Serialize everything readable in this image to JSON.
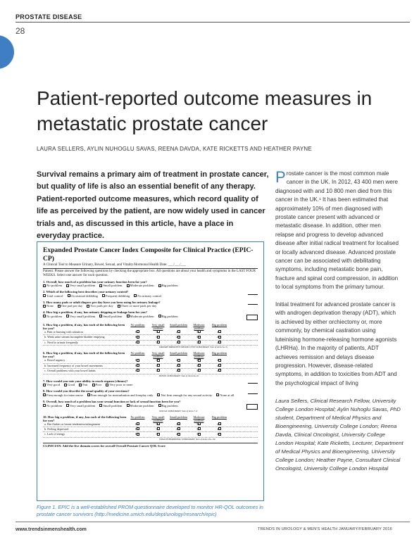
{
  "header": {
    "section_label": "PROSTATE DISEASE",
    "page_number": "28"
  },
  "article": {
    "title": "Patient-reported outcome measures in metastatic prostate cancer",
    "authors": "LAURA SELLERS, AYLIN NUHOGLU SAVAS, REENA DAVDA, KATE RICKETTS AND HEATHER PAYNE",
    "standfirst": "Survival remains a primary aim of treatment in prostate cancer, but quality of life is also an essential benefit of any therapy. Patient-reported outcome measures, which record quality of life as perceived by the patient, are now widely used in cancer trials and, as discussed in this article, have a place in everyday practice.",
    "body_dropcap": "P",
    "body_para1_rest": "rostate cancer is the most common male cancer in the UK. In 2012, 43 400 men were diagnosed with and 10 800 men died from this cancer in the UK.¹ It has been estimated that approximately 10% of men diagnosed with prostate cancer present with advanced or metastatic disease. In addition, other men relapse and progress to develop advanced disease after initial radical treatment for localised or locally advanced disease. Advanced prostate cancer can be associated with debilitating symptoms, including metastatic bone pain, fracture and spinal cord compression, in addition to local symptoms from the primary tumour.",
    "body_para2": "Initial treatment for advanced prostate cancer is with androgen deprivation therapy (ADT), which is achieved by either orchiectomy or, more commonly, by chemical castration using luteinising hormone-releasing hormone agonists (LHRHa). In the majority of patients, ADT achieves remission and delays disease progression. However, disease-related symptoms, in addition to toxicities from ADT and the psychological impact of living",
    "bio": "Laura Sellers, Clinical Research Fellow, University College London Hospital; Aylin Nuhoglu Savas, PhD student, Department of Medical Physics and Bioengineering, University College London; Reena Davda, Clinical Oncologist, University College London Hospital; Kate Ricketts, Lecturer, Department of Medical Physics and Bioengineering, University College London; Heather Payne, Consultant Clinical Oncologist, University College London Hospital"
  },
  "figure": {
    "form_title": "Expanded Prostate Cancer Index Composite for Clinical Practice (EPIC-CP)",
    "form_subtitle": "A Clinical Tool to Measure Urinary, Bowel, Sexual, and Vitality/Hormonal Health     Date: ___/___/___",
    "form_instructions": "Patient: Please answer the following questions by checking the appropriate box. All questions are about your health and symptoms in the LAST FOUR WEEKS. Select one answer for each question.",
    "q1": {
      "text": "1. Overall, how much of a problem has your urinary function been for you?",
      "options": [
        "No problem",
        "Very small problem",
        "Small problem",
        "Moderate problem",
        "Big problem"
      ]
    },
    "q2": {
      "text": "2. Which of the following best describes your urinary control?",
      "options": [
        "Total control",
        "Occasional dribbling",
        "Frequent dribbling",
        "No urinary control"
      ]
    },
    "q3": {
      "text": "3. How many pads or adult diapers per day have you been using for urinary leakage?",
      "options": [
        "None",
        "One pad per day",
        "Two pads per day",
        "Three or more pads per day"
      ]
    },
    "q4": {
      "text": "4. How big a problem, if any, has urinary dripping or leakage been for you?",
      "options": [
        "No problem",
        "Very small problem",
        "Small problem",
        "Moderate problem",
        "Big problem"
      ]
    },
    "grid_columns": [
      "No problem",
      "Very small problem",
      "Small problem",
      "Moderate problem",
      "Big problem"
    ],
    "q5": {
      "text": "5. How big a problem, if any, has each of the following been for you?",
      "rows": [
        "a. Pain or burning with urination",
        "b. Weak urine stream/incomplete bladder emptying",
        "c. Need to urinate frequently"
      ],
      "values": [
        "0",
        "1",
        "2",
        "3",
        "4"
      ],
      "note": "URINARY IRRITATIVE/OBSTRUCTIVE SUBDOMAIN: Sum of items 5a–5c"
    },
    "q6": {
      "text": "6. How big a problem, if any, has each of the following been for you?",
      "rows": [
        "a. Bowel urgency",
        "b. Increased frequency of your bowel movements",
        "c. Overall problems with your bowel habits"
      ],
      "values": [
        "0",
        "1",
        "2",
        "3",
        "4"
      ],
      "note": "BOWEL SUBDOMAIN: Sum of items 6a–6c"
    },
    "q7": {
      "text": "7. How would you rate your ability to reach orgasm (climax)?",
      "options": [
        "Very good",
        "Good",
        "Fair",
        "Poor",
        "Very poor to none"
      ]
    },
    "q8": {
      "text": "8. How would you describe the usual quality of your erections?",
      "options": [
        "Firm enough for intercourse",
        "Firm enough for masturbation and foreplay only",
        "Not firm enough for any sexual activity",
        "None at all"
      ]
    },
    "q9": {
      "text": "9. Overall, how much of a problem has your sexual function or lack of sexual function been for you?",
      "options": [
        "No problem",
        "Very small problem",
        "Small problem",
        "Moderate problem",
        "Big problem"
      ],
      "note": "SEXUAL SUBDOMAIN: Sum of items 7–9"
    },
    "q10": {
      "text": "10. How big a problem, if any, has each of the following been for you?",
      "rows": [
        "a. Hot flashes or breast tenderness/enlargement",
        "b. Feeling depressed",
        "c. Lack of energy"
      ],
      "values": [
        "0",
        "1",
        "2",
        "3",
        "4"
      ],
      "note": "VITALITY/HORMONAL SUBDOMAIN: Sum of items 10a–10c"
    },
    "form_footer": "CLINICIAN: Add the five domain scores for overall Overall Prostate Cancer QOL Score",
    "caption": "Figure 1. EPIC is a well-established PROM questionnaire developed to monitor HR-QOL outcomes in prostate cancer survivors (http://medicine.umich.edu/dept/urology/research/epic)"
  },
  "footer": {
    "url": "www.trendsinmenshealth.com",
    "journal": "TRENDS IN UROLOGY & MEN'S HEALTH    JANUARY/FEBRUARY 2016"
  },
  "colors": {
    "accent": "#3f7ec2",
    "text": "#222222"
  }
}
